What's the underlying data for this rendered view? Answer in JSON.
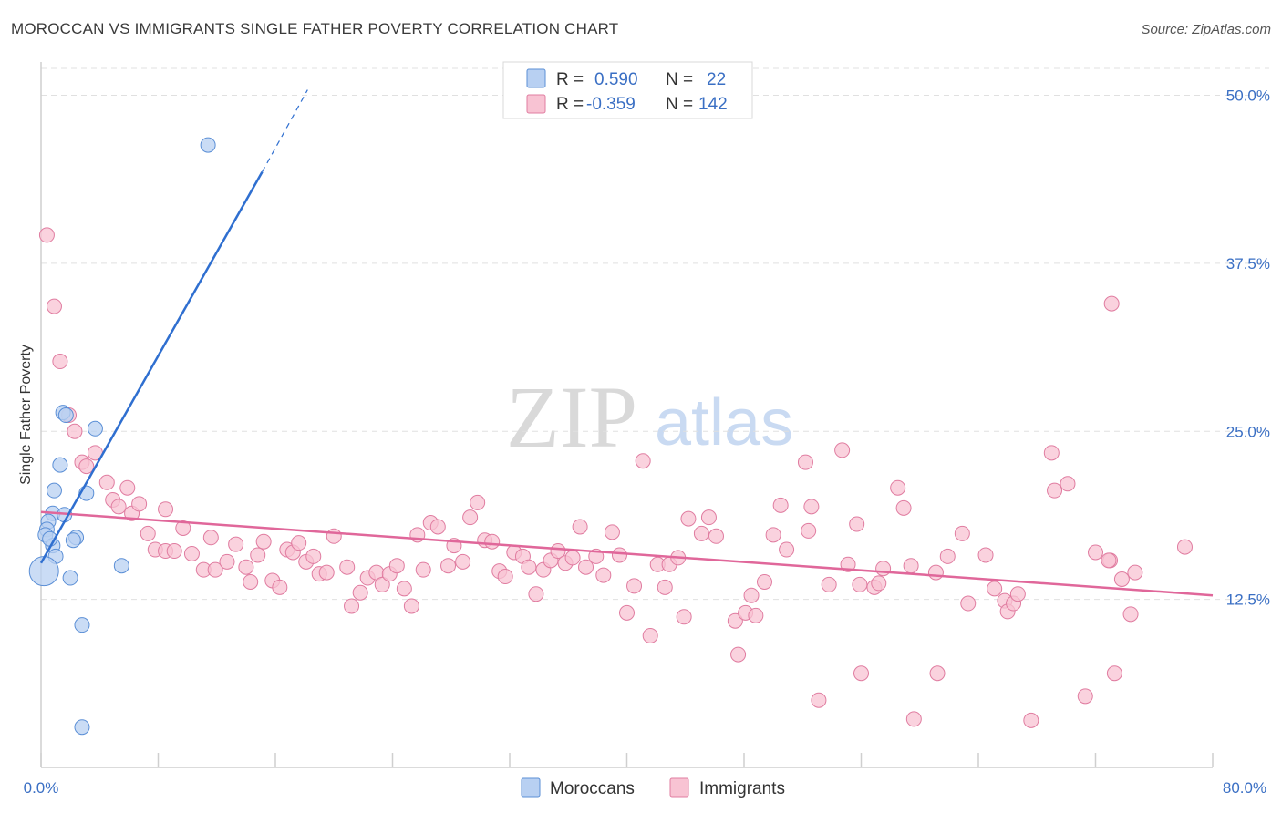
{
  "title": "MOROCCAN VS IMMIGRANTS SINGLE FATHER POVERTY CORRELATION CHART",
  "source": "Source: ZipAtlas.com",
  "watermark": {
    "zip": "ZIP",
    "atlas": "atlas"
  },
  "colors": {
    "blue_fill": "#b8d0f2",
    "blue_stroke": "#5b8fd6",
    "blue_line": "#2f6fd0",
    "pink_fill": "#f8c3d3",
    "pink_stroke": "#e07ca0",
    "pink_line": "#e0679a",
    "axis_text": "#3a6fc4",
    "grid": "#e0e0e0"
  },
  "legend_top": {
    "rows": [
      {
        "r_label": "R = ",
        "r_value": "0.590",
        "n_label": "N = ",
        "n_value": "22",
        "series": "blue"
      },
      {
        "r_label": "R = ",
        "r_value": "-0.359",
        "n_label": "N = ",
        "n_value": "142",
        "series": "pink"
      }
    ]
  },
  "legend_bottom": [
    "Moroccans",
    "Immigrants"
  ],
  "chart_data": {
    "type": "scatter",
    "title": "MOROCCAN VS IMMIGRANTS SINGLE FATHER POVERTY CORRELATION CHART",
    "xlabel": "",
    "ylabel": "Single Father Poverty",
    "xlim": [
      0,
      80
    ],
    "ylim": [
      0,
      52
    ],
    "x_tick_labels": [
      "0.0%",
      "80.0%"
    ],
    "y_ticks": [
      12.5,
      25.0,
      37.5,
      50.0
    ],
    "y_tick_labels": [
      "12.5%",
      "25.0%",
      "37.5%",
      "50.0%"
    ],
    "grid": true,
    "series": [
      {
        "name": "Moroccans",
        "color": "blue",
        "points": [
          [
            11.4,
            46.3
          ],
          [
            1.5,
            26.4
          ],
          [
            3.7,
            25.2
          ],
          [
            1.3,
            22.5
          ],
          [
            0.9,
            20.6
          ],
          [
            3.1,
            20.4
          ],
          [
            0.8,
            18.9
          ],
          [
            1.6,
            18.8
          ],
          [
            0.5,
            18.3
          ],
          [
            0.4,
            17.7
          ],
          [
            0.3,
            17.3
          ],
          [
            2.4,
            17.1
          ],
          [
            2.2,
            16.9
          ],
          [
            0.8,
            16.5
          ],
          [
            1.0,
            15.7
          ],
          [
            5.5,
            15.0
          ],
          [
            2.0,
            14.1
          ],
          [
            2.8,
            10.6
          ],
          [
            2.8,
            3.0
          ],
          [
            0.2,
            14.6
          ],
          [
            1.7,
            26.2
          ],
          [
            0.6,
            17.0
          ]
        ],
        "trend": {
          "x1": 0.0,
          "y1": 15.2,
          "x2": 15.1,
          "y2": 44.3,
          "dashed_to": [
            18.2,
            50.4
          ]
        }
      },
      {
        "name": "Immigrants",
        "color": "pink",
        "points": [
          [
            0.4,
            39.6
          ],
          [
            0.9,
            34.3
          ],
          [
            1.3,
            30.2
          ],
          [
            1.9,
            26.2
          ],
          [
            2.3,
            25.0
          ],
          [
            2.8,
            22.7
          ],
          [
            3.1,
            22.4
          ],
          [
            3.7,
            23.4
          ],
          [
            4.5,
            21.2
          ],
          [
            4.9,
            19.9
          ],
          [
            5.3,
            19.4
          ],
          [
            5.9,
            20.8
          ],
          [
            6.2,
            18.9
          ],
          [
            6.7,
            19.6
          ],
          [
            7.3,
            17.4
          ],
          [
            7.8,
            16.2
          ],
          [
            8.5,
            16.1
          ],
          [
            8.5,
            19.2
          ],
          [
            9.1,
            16.1
          ],
          [
            9.7,
            17.8
          ],
          [
            10.3,
            15.9
          ],
          [
            11.1,
            14.7
          ],
          [
            11.6,
            17.1
          ],
          [
            11.9,
            14.7
          ],
          [
            12.7,
            15.3
          ],
          [
            13.3,
            16.6
          ],
          [
            14.0,
            14.9
          ],
          [
            14.3,
            13.8
          ],
          [
            14.8,
            15.8
          ],
          [
            15.2,
            16.8
          ],
          [
            15.8,
            13.9
          ],
          [
            16.3,
            13.4
          ],
          [
            16.8,
            16.2
          ],
          [
            17.2,
            16.0
          ],
          [
            17.6,
            16.7
          ],
          [
            18.1,
            15.3
          ],
          [
            18.6,
            15.7
          ],
          [
            19.0,
            14.4
          ],
          [
            19.5,
            14.5
          ],
          [
            20.0,
            17.2
          ],
          [
            20.9,
            14.9
          ],
          [
            21.2,
            12.0
          ],
          [
            21.8,
            13.0
          ],
          [
            22.3,
            14.1
          ],
          [
            22.9,
            14.5
          ],
          [
            23.3,
            13.6
          ],
          [
            23.8,
            14.4
          ],
          [
            24.3,
            15.0
          ],
          [
            24.8,
            13.3
          ],
          [
            25.3,
            12.0
          ],
          [
            25.7,
            17.3
          ],
          [
            26.1,
            14.7
          ],
          [
            26.6,
            18.2
          ],
          [
            27.1,
            17.9
          ],
          [
            27.8,
            15.0
          ],
          [
            28.2,
            16.5
          ],
          [
            28.8,
            15.3
          ],
          [
            29.3,
            18.6
          ],
          [
            29.8,
            19.7
          ],
          [
            30.3,
            16.9
          ],
          [
            30.8,
            16.8
          ],
          [
            31.3,
            14.6
          ],
          [
            31.7,
            14.2
          ],
          [
            32.3,
            16.0
          ],
          [
            32.9,
            15.7
          ],
          [
            33.3,
            14.9
          ],
          [
            33.8,
            12.9
          ],
          [
            34.3,
            14.7
          ],
          [
            34.8,
            15.4
          ],
          [
            35.3,
            16.1
          ],
          [
            35.8,
            15.2
          ],
          [
            36.3,
            15.6
          ],
          [
            36.8,
            17.9
          ],
          [
            37.2,
            14.9
          ],
          [
            37.9,
            15.7
          ],
          [
            38.4,
            14.3
          ],
          [
            39.0,
            17.5
          ],
          [
            39.5,
            15.8
          ],
          [
            40.0,
            11.5
          ],
          [
            40.5,
            13.5
          ],
          [
            41.1,
            22.8
          ],
          [
            41.6,
            9.8
          ],
          [
            42.1,
            15.1
          ],
          [
            42.6,
            13.4
          ],
          [
            42.9,
            15.1
          ],
          [
            43.5,
            15.6
          ],
          [
            43.9,
            11.2
          ],
          [
            44.2,
            18.5
          ],
          [
            45.1,
            17.4
          ],
          [
            45.6,
            18.6
          ],
          [
            46.1,
            17.2
          ],
          [
            47.4,
            10.9
          ],
          [
            47.6,
            8.4
          ],
          [
            48.1,
            11.5
          ],
          [
            48.5,
            12.8
          ],
          [
            48.8,
            11.3
          ],
          [
            49.4,
            13.8
          ],
          [
            50.0,
            17.3
          ],
          [
            50.5,
            19.5
          ],
          [
            50.9,
            16.2
          ],
          [
            52.2,
            22.7
          ],
          [
            52.6,
            19.4
          ],
          [
            53.1,
            5.0
          ],
          [
            53.8,
            13.6
          ],
          [
            54.7,
            23.6
          ],
          [
            55.1,
            15.1
          ],
          [
            55.7,
            18.1
          ],
          [
            56.0,
            7.0
          ],
          [
            56.9,
            13.4
          ],
          [
            57.2,
            13.7
          ],
          [
            57.5,
            14.8
          ],
          [
            58.5,
            20.8
          ],
          [
            58.9,
            19.3
          ],
          [
            59.6,
            3.6
          ],
          [
            59.4,
            15.0
          ],
          [
            61.1,
            14.5
          ],
          [
            61.2,
            7.0
          ],
          [
            61.9,
            15.7
          ],
          [
            62.9,
            17.4
          ],
          [
            63.3,
            12.2
          ],
          [
            64.5,
            15.8
          ],
          [
            65.1,
            13.3
          ],
          [
            65.8,
            12.4
          ],
          [
            66.0,
            11.6
          ],
          [
            66.4,
            12.2
          ],
          [
            66.7,
            12.9
          ],
          [
            67.6,
            3.5
          ],
          [
            69.0,
            23.4
          ],
          [
            69.2,
            20.6
          ],
          [
            70.1,
            21.1
          ],
          [
            71.3,
            5.3
          ],
          [
            72.0,
            16.0
          ],
          [
            73.0,
            15.4
          ],
          [
            73.8,
            14.0
          ],
          [
            74.4,
            11.4
          ],
          [
            74.7,
            14.5
          ],
          [
            73.1,
            34.5
          ],
          [
            73.3,
            7.0
          ],
          [
            78.1,
            16.4
          ],
          [
            72.9,
            15.4
          ],
          [
            55.9,
            13.6
          ],
          [
            52.4,
            17.6
          ]
        ],
        "trend": {
          "x1": 0.0,
          "y1": 19.0,
          "x2": 80.0,
          "y2": 12.8
        }
      }
    ]
  }
}
